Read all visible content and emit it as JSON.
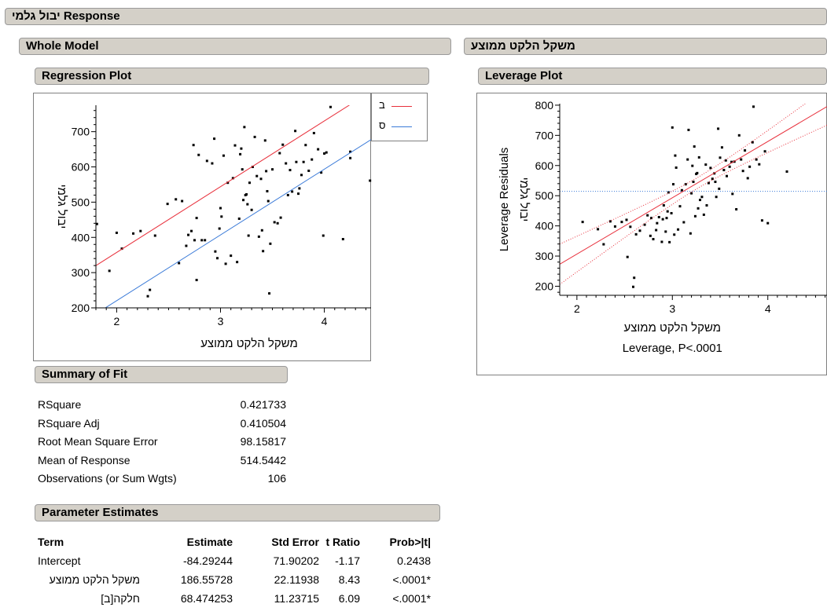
{
  "response_header": "יבול גלמי Response",
  "whole_model_header": "Whole Model",
  "regression_plot_header": "Regression Plot",
  "leverage_section_header": "משקל הלקט ממוצע",
  "leverage_plot_header": "Leverage Plot",
  "summary_header": "Summary of Fit",
  "summary_rows": [
    {
      "label": "RSquare",
      "value": "0.421733"
    },
    {
      "label": "RSquare Adj",
      "value": "0.410504"
    },
    {
      "label": "Root Mean Square Error",
      "value": "98.15817"
    },
    {
      "label": "Mean of Response",
      "value": "514.5442"
    },
    {
      "label": "Observations (or Sum Wgts)",
      "value": "106"
    }
  ],
  "param_header": "Parameter Estimates",
  "param_columns": [
    "Term",
    "Estimate",
    "Std Error",
    "t Ratio",
    "Prob>|t|"
  ],
  "param_rows": [
    [
      "Intercept",
      "-84.29244",
      "71.90202",
      "-1.17",
      "0.2438"
    ],
    [
      "משקל הלקט ממוצע",
      "186.55728",
      "22.11938",
      "8.43",
      "<.0001*"
    ],
    [
      "חלקה[ב]",
      "68.474253",
      "11.23715",
      "6.09",
      "<.0001*"
    ]
  ],
  "chart_data": [
    {
      "type": "scatter",
      "title": "",
      "xlabel": "משקל הלקט ממוצע",
      "ylabel": "יבול גלמי",
      "xlim": [
        1.8,
        4.45
      ],
      "ylim": [
        200,
        775
      ],
      "xticks": [
        "2",
        "3",
        "4"
      ],
      "yticks": [
        "200",
        "300",
        "400",
        "500",
        "600",
        "700"
      ],
      "legend_position": "top-right",
      "series": [
        {
          "name": "ב",
          "color": "#e8303c",
          "line": {
            "slope": 186.55728,
            "intercept": -15.818187
          }
        },
        {
          "name": "ס",
          "color": "#3a7ad8",
          "line": {
            "slope": 186.55728,
            "intercept": -152.766693
          }
        }
      ],
      "points": [
        [
          1.81,
          438
        ],
        [
          1.93,
          305
        ],
        [
          2.0,
          413
        ],
        [
          2.05,
          368
        ],
        [
          2.16,
          411
        ],
        [
          2.23,
          418
        ],
        [
          2.3,
          233
        ],
        [
          2.32,
          251
        ],
        [
          2.37,
          405
        ],
        [
          2.49,
          495
        ],
        [
          2.57,
          508
        ],
        [
          2.6,
          327
        ],
        [
          2.63,
          503
        ],
        [
          2.67,
          376
        ],
        [
          2.69,
          407
        ],
        [
          2.72,
          418
        ],
        [
          2.74,
          662
        ],
        [
          2.75,
          392
        ],
        [
          2.77,
          279
        ],
        [
          2.77,
          455
        ],
        [
          2.79,
          634
        ],
        [
          2.82,
          392
        ],
        [
          2.85,
          392
        ],
        [
          2.87,
          617
        ],
        [
          2.92,
          610
        ],
        [
          2.94,
          680
        ],
        [
          2.95,
          360
        ],
        [
          2.97,
          341
        ],
        [
          2.99,
          425
        ],
        [
          3.0,
          483
        ],
        [
          3.01,
          459
        ],
        [
          3.03,
          632
        ],
        [
          3.05,
          325
        ],
        [
          3.07,
          555
        ],
        [
          3.1,
          348
        ],
        [
          3.12,
          568
        ],
        [
          3.14,
          661
        ],
        [
          3.16,
          330
        ],
        [
          3.18,
          453
        ],
        [
          3.19,
          636
        ],
        [
          3.2,
          652
        ],
        [
          3.21,
          593
        ],
        [
          3.22,
          506
        ],
        [
          3.23,
          713
        ],
        [
          3.24,
          520
        ],
        [
          3.25,
          522
        ],
        [
          3.26,
          494
        ],
        [
          3.27,
          405
        ],
        [
          3.28,
          555
        ],
        [
          3.3,
          478
        ],
        [
          3.31,
          600
        ],
        [
          3.33,
          685
        ],
        [
          3.35,
          574
        ],
        [
          3.37,
          402
        ],
        [
          3.39,
          566
        ],
        [
          3.4,
          420
        ],
        [
          3.41,
          361
        ],
        [
          3.43,
          675
        ],
        [
          3.44,
          588
        ],
        [
          3.45,
          531
        ],
        [
          3.46,
          503
        ],
        [
          3.47,
          241
        ],
        [
          3.48,
          382
        ],
        [
          3.5,
          593
        ],
        [
          3.52,
          443
        ],
        [
          3.55,
          440
        ],
        [
          3.57,
          639
        ],
        [
          3.58,
          456
        ],
        [
          3.6,
          663
        ],
        [
          3.63,
          610
        ],
        [
          3.65,
          520
        ],
        [
          3.67,
          591
        ],
        [
          3.69,
          530
        ],
        [
          3.72,
          702
        ],
        [
          3.73,
          614
        ],
        [
          3.75,
          524
        ],
        [
          3.76,
          539
        ],
        [
          3.78,
          577
        ],
        [
          3.8,
          614
        ],
        [
          3.82,
          662
        ],
        [
          3.85,
          589
        ],
        [
          3.88,
          621
        ],
        [
          3.9,
          696
        ],
        [
          3.94,
          650
        ],
        [
          3.97,
          584
        ],
        [
          3.99,
          405
        ],
        [
          4.0,
          638
        ],
        [
          4.02,
          641
        ],
        [
          4.06,
          770
        ],
        [
          4.18,
          395
        ],
        [
          4.25,
          643
        ],
        [
          4.25,
          625
        ],
        [
          4.44,
          561
        ]
      ]
    },
    {
      "type": "scatter",
      "title": "",
      "xlabel": "משקל הלקט ממוצע",
      "ylabel": "יבול גלמי",
      "ylabel2": "Leverage Residuals",
      "caption": "Leverage, P<.0001",
      "xlim": [
        1.82,
        4.62
      ],
      "ylim": [
        170,
        805
      ],
      "xticks": [
        "2",
        "3",
        "4"
      ],
      "yticks": [
        "200",
        "300",
        "400",
        "500",
        "600",
        "700",
        "800"
      ],
      "mean_line": 514.5442,
      "fit": {
        "slope": 186.55728,
        "intercept": -66.53
      },
      "points": [
        [
          2.06,
          413
        ],
        [
          2.22,
          389
        ],
        [
          2.28,
          339
        ],
        [
          2.35,
          415
        ],
        [
          2.4,
          398
        ],
        [
          2.47,
          413
        ],
        [
          2.52,
          420
        ],
        [
          2.53,
          297
        ],
        [
          2.56,
          397
        ],
        [
          2.59,
          198
        ],
        [
          2.6,
          228
        ],
        [
          2.62,
          372
        ],
        [
          2.66,
          384
        ],
        [
          2.71,
          404
        ],
        [
          2.74,
          435
        ],
        [
          2.77,
          367
        ],
        [
          2.78,
          426
        ],
        [
          2.8,
          356
        ],
        [
          2.83,
          386
        ],
        [
          2.84,
          409
        ],
        [
          2.86,
          429
        ],
        [
          2.89,
          347
        ],
        [
          2.9,
          422
        ],
        [
          2.91,
          468
        ],
        [
          2.93,
          381
        ],
        [
          2.94,
          426
        ],
        [
          2.95,
          448
        ],
        [
          2.96,
          511
        ],
        [
          2.97,
          346
        ],
        [
          2.99,
          442
        ],
        [
          3.0,
          726
        ],
        [
          3.01,
          538
        ],
        [
          3.02,
          371
        ],
        [
          3.03,
          633
        ],
        [
          3.04,
          593
        ],
        [
          3.06,
          388
        ],
        [
          3.08,
          465
        ],
        [
          3.1,
          518
        ],
        [
          3.12,
          412
        ],
        [
          3.14,
          538
        ],
        [
          3.16,
          620
        ],
        [
          3.17,
          718
        ],
        [
          3.19,
          375
        ],
        [
          3.2,
          508
        ],
        [
          3.21,
          599
        ],
        [
          3.22,
          546
        ],
        [
          3.23,
          663
        ],
        [
          3.24,
          432
        ],
        [
          3.25,
          572
        ],
        [
          3.26,
          575
        ],
        [
          3.27,
          458
        ],
        [
          3.28,
          627
        ],
        [
          3.29,
          486
        ],
        [
          3.31,
          496
        ],
        [
          3.33,
          437
        ],
        [
          3.35,
          603
        ],
        [
          3.36,
          468
        ],
        [
          3.38,
          542
        ],
        [
          3.4,
          592
        ],
        [
          3.42,
          556
        ],
        [
          3.44,
          574
        ],
        [
          3.45,
          546
        ],
        [
          3.46,
          496
        ],
        [
          3.48,
          722
        ],
        [
          3.49,
          523
        ],
        [
          3.5,
          626
        ],
        [
          3.52,
          660
        ],
        [
          3.54,
          585
        ],
        [
          3.56,
          617
        ],
        [
          3.57,
          565
        ],
        [
          3.6,
          596
        ],
        [
          3.62,
          612
        ],
        [
          3.63,
          506
        ],
        [
          3.65,
          613
        ],
        [
          3.67,
          455
        ],
        [
          3.7,
          700
        ],
        [
          3.72,
          620
        ],
        [
          3.74,
          582
        ],
        [
          3.76,
          650
        ],
        [
          3.79,
          558
        ],
        [
          3.81,
          596
        ],
        [
          3.84,
          677
        ],
        [
          3.85,
          795
        ],
        [
          3.88,
          620
        ],
        [
          3.91,
          604
        ],
        [
          3.94,
          418
        ],
        [
          3.97,
          647
        ],
        [
          4.0,
          409
        ],
        [
          4.2,
          580
        ]
      ]
    }
  ],
  "legend": [
    {
      "name": "ב",
      "color": "#e8303c"
    },
    {
      "name": "ס",
      "color": "#3a7ad8"
    }
  ]
}
